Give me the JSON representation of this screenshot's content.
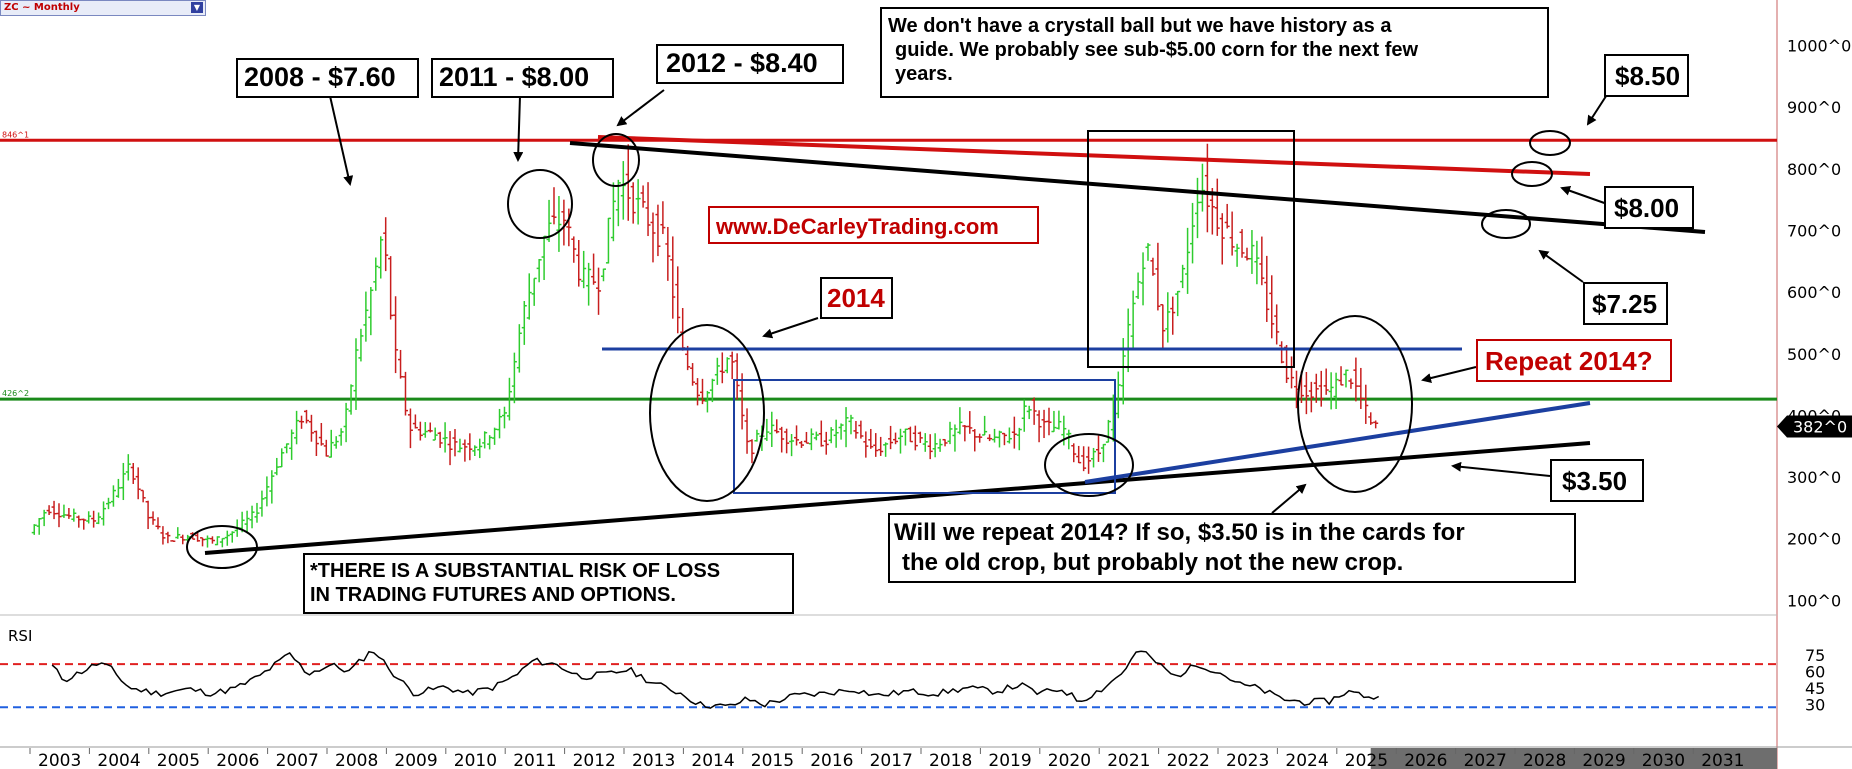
{
  "symbol": "ZC ~ Monthly",
  "colors": {
    "up": "#2ecc2e",
    "down": "#c81e1e",
    "resistance": "#d01010",
    "support": "#1a8a1a",
    "blue": "#1c3fa0",
    "black": "#000000",
    "rsi_upper": "#e02020",
    "rsi_lower": "#2060e0",
    "accent_red": "#c00000"
  },
  "annotations": {
    "a2008": "2008 - $7.60",
    "a2011": "2011 - $8.00",
    "a2012": "2012 - $8.40",
    "a2014": "2014",
    "website": "www.DeCarleyTrading.com",
    "history_l1": "We don't have a crystall ball but we have history as a",
    "history_l2": "guide. We probably see sub-$5.00 corn for the next few",
    "history_l3": "years.",
    "p850": "$8.50",
    "p800": "$8.00",
    "p725": "$7.25",
    "p350": "$3.50",
    "repeat": "Repeat 2014?",
    "risk_l1": "*THERE IS A SUBSTANTIAL RISK OF LOSS",
    "risk_l2": "IN TRADING FUTURES AND OPTIONS.",
    "will_l1": "Will we repeat 2014? If so, $3.50 is in the cards for",
    "will_l2": "the old crop, but probably not the new crop."
  },
  "chart_data": [
    {
      "type": "candlestick",
      "title": "ZC ~ Monthly",
      "y_ticks": [
        "1000^0",
        "900^0",
        "800^0",
        "700^0",
        "600^0",
        "500^0",
        "400^0",
        "300^0",
        "200^0",
        "100^0"
      ],
      "y_tick_values": [
        1000,
        900,
        800,
        700,
        600,
        500,
        400,
        300,
        200,
        100
      ],
      "ylim": [
        70,
        1030
      ],
      "x_ticks": [
        "2003",
        "2004",
        "2005",
        "2006",
        "2007",
        "2008",
        "2009",
        "2010",
        "2011",
        "2012",
        "2013",
        "2014",
        "2015",
        "2016",
        "2017",
        "2018",
        "2019",
        "2020",
        "2021",
        "2022",
        "2023",
        "2024",
        "2025",
        "2026",
        "2027",
        "2028",
        "2029",
        "2030",
        "2031"
      ],
      "last_price": "382^0",
      "last_value": 382,
      "level_labels": {
        "resistance": "846^1",
        "support": "426^2"
      },
      "horizontal_levels": [
        846.25,
        426.5
      ],
      "anchors": [
        [
          2002.6,
          210
        ],
        [
          2002.9,
          250
        ],
        [
          2003.3,
          235
        ],
        [
          2003.7,
          230
        ],
        [
          2004.0,
          270
        ],
        [
          2004.3,
          320
        ],
        [
          2004.6,
          235
        ],
        [
          2004.9,
          200
        ],
        [
          2005.3,
          205
        ],
        [
          2005.7,
          195
        ],
        [
          2006.0,
          210
        ],
        [
          2006.4,
          240
        ],
        [
          2006.8,
          330
        ],
        [
          2007.2,
          400
        ],
        [
          2007.6,
          340
        ],
        [
          2007.9,
          380
        ],
        [
          2008.1,
          500
        ],
        [
          2008.4,
          620
        ],
        [
          2008.55,
          700
        ],
        [
          2008.75,
          500
        ],
        [
          2009.0,
          380
        ],
        [
          2009.4,
          370
        ],
        [
          2009.8,
          350
        ],
        [
          2010.2,
          355
        ],
        [
          2010.6,
          400
        ],
        [
          2010.9,
          560
        ],
        [
          2011.3,
          700
        ],
        [
          2011.6,
          720
        ],
        [
          2011.9,
          620
        ],
        [
          2012.2,
          620
        ],
        [
          2012.5,
          780
        ],
        [
          2012.7,
          760
        ],
        [
          2013.0,
          720
        ],
        [
          2013.3,
          680
        ],
        [
          2013.6,
          500
        ],
        [
          2013.9,
          430
        ],
        [
          2014.2,
          470
        ],
        [
          2014.4,
          500
        ],
        [
          2014.7,
          340
        ],
        [
          2015.0,
          380
        ],
        [
          2015.5,
          360
        ],
        [
          2016.0,
          360
        ],
        [
          2016.4,
          390
        ],
        [
          2016.8,
          340
        ],
        [
          2017.3,
          370
        ],
        [
          2017.8,
          350
        ],
        [
          2018.3,
          380
        ],
        [
          2018.8,
          360
        ],
        [
          2019.2,
          370
        ],
        [
          2019.4,
          420
        ],
        [
          2019.7,
          380
        ],
        [
          2020.0,
          380
        ],
        [
          2020.3,
          320
        ],
        [
          2020.6,
          340
        ],
        [
          2020.9,
          420
        ],
        [
          2021.1,
          540
        ],
        [
          2021.4,
          680
        ],
        [
          2021.7,
          540
        ],
        [
          2022.0,
          620
        ],
        [
          2022.3,
          780
        ],
        [
          2022.6,
          720
        ],
        [
          2022.9,
          680
        ],
        [
          2023.2,
          660
        ],
        [
          2023.5,
          560
        ],
        [
          2023.8,
          460
        ],
        [
          2024.1,
          440
        ],
        [
          2024.5,
          440
        ],
        [
          2024.8,
          470
        ],
        [
          2025.0,
          430
        ],
        [
          2025.2,
          380
        ]
      ]
    },
    {
      "type": "line",
      "title": "RSI",
      "y_ticks": [
        "75",
        "60",
        "45",
        "30"
      ],
      "y_tick_values": [
        75,
        60,
        45,
        30
      ],
      "ylim": [
        25,
        85
      ],
      "levels": [
        66.7,
        27.5
      ],
      "anchors": [
        [
          2002.9,
          65
        ],
        [
          2003.1,
          52
        ],
        [
          2003.4,
          60
        ],
        [
          2003.7,
          68
        ],
        [
          2003.9,
          62
        ],
        [
          2004.2,
          45
        ],
        [
          2004.7,
          40
        ],
        [
          2005.2,
          44
        ],
        [
          2005.6,
          40
        ],
        [
          2006.0,
          45
        ],
        [
          2006.4,
          56
        ],
        [
          2006.9,
          76
        ],
        [
          2007.2,
          58
        ],
        [
          2007.6,
          66
        ],
        [
          2007.9,
          60
        ],
        [
          2008.3,
          80
        ],
        [
          2008.7,
          55
        ],
        [
          2009.0,
          40
        ],
        [
          2009.5,
          46
        ],
        [
          2009.9,
          40
        ],
        [
          2010.3,
          45
        ],
        [
          2010.7,
          56
        ],
        [
          2011.0,
          70
        ],
        [
          2011.4,
          66
        ],
        [
          2011.8,
          55
        ],
        [
          2012.3,
          58
        ],
        [
          2012.6,
          62
        ],
        [
          2013.0,
          50
        ],
        [
          2013.5,
          40
        ],
        [
          2013.8,
          30
        ],
        [
          2014.3,
          28
        ],
        [
          2014.6,
          35
        ],
        [
          2014.9,
          30
        ],
        [
          2015.4,
          38
        ],
        [
          2015.9,
          40
        ],
        [
          2016.4,
          44
        ],
        [
          2016.8,
          38
        ],
        [
          2017.3,
          42
        ],
        [
          2017.8,
          40
        ],
        [
          2018.3,
          45
        ],
        [
          2018.8,
          42
        ],
        [
          2019.2,
          48
        ],
        [
          2019.5,
          40
        ],
        [
          2019.9,
          44
        ],
        [
          2020.2,
          33
        ],
        [
          2020.6,
          45
        ],
        [
          2020.9,
          58
        ],
        [
          2021.2,
          80
        ],
        [
          2021.5,
          68
        ],
        [
          2021.8,
          55
        ],
        [
          2022.2,
          67
        ],
        [
          2022.6,
          58
        ],
        [
          2022.9,
          48
        ],
        [
          2023.2,
          45
        ],
        [
          2023.6,
          35
        ],
        [
          2024.0,
          32
        ],
        [
          2024.4,
          33
        ],
        [
          2024.7,
          42
        ],
        [
          2025.0,
          38
        ],
        [
          2025.3,
          35
        ]
      ]
    }
  ]
}
